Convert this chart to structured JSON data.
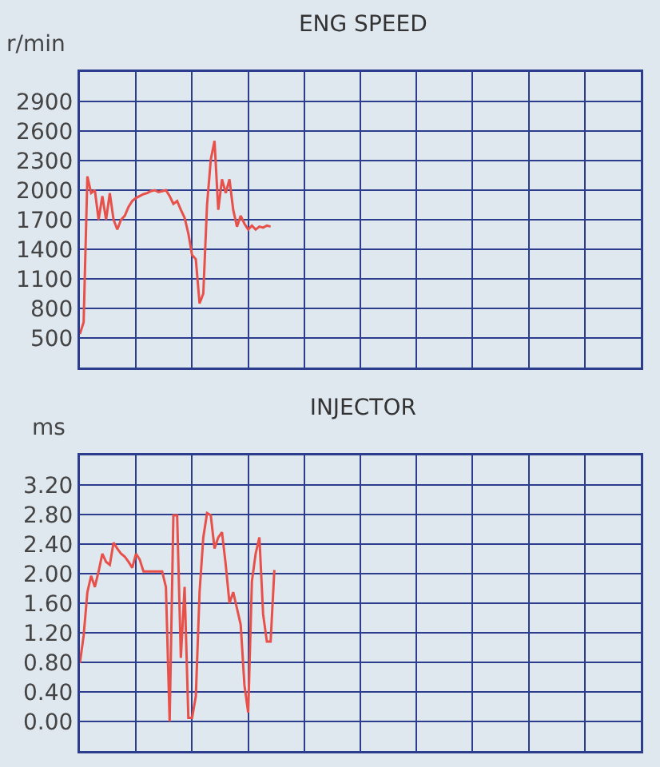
{
  "chart_data": [
    {
      "type": "line",
      "title": "ENG SPEED",
      "ylabel": "r/min",
      "grid": true,
      "marker": "none",
      "line_style": "solid",
      "tick_labels": "y",
      "ylim": [
        200,
        3200
      ],
      "yticks": [
        500,
        800,
        1100,
        1400,
        1700,
        2000,
        2300,
        2600,
        2900
      ],
      "categories": [
        null,
        null,
        null,
        null,
        null,
        null,
        null,
        null,
        null,
        null,
        null,
        null,
        null,
        null,
        null,
        null,
        null,
        null,
        null,
        null,
        null,
        null,
        null,
        null,
        null,
        null,
        null,
        null,
        null,
        null,
        null,
        null,
        null,
        null,
        null,
        null,
        null,
        null,
        null,
        null,
        null,
        null,
        null,
        null,
        null,
        null,
        null,
        null,
        null,
        null,
        null,
        null,
        null,
        null,
        null,
        null,
        null,
        null,
        null,
        null,
        null,
        null,
        null,
        null,
        null,
        null,
        null,
        null,
        null,
        null,
        null,
        null,
        null,
        null,
        null,
        null,
        null,
        null,
        null,
        null,
        null,
        null,
        null,
        null,
        null,
        null,
        null,
        null,
        null,
        null,
        null,
        null,
        null,
        null,
        null,
        null,
        null,
        null,
        null,
        null,
        null,
        null,
        null,
        null,
        null,
        null,
        null,
        null,
        null,
        null,
        null,
        null,
        null,
        null,
        null,
        null,
        null,
        null,
        null,
        null,
        null,
        null,
        null,
        null,
        null,
        null,
        null,
        null,
        null,
        null,
        null,
        null,
        null,
        null,
        null,
        null,
        null,
        null,
        null,
        null,
        null,
        null,
        null,
        null,
        null,
        null,
        null,
        null,
        null,
        null
      ],
      "series": [
        {
          "color": "#e8504a",
          "values": [
            540,
            660,
            2140,
            1970,
            2000,
            1700,
            1940,
            1700,
            1970,
            1700,
            1600,
            1700,
            1740,
            1830,
            1890,
            1920,
            1940,
            1960,
            1970,
            1990,
            2000,
            1980,
            1990,
            2000,
            1940,
            1860,
            1890,
            1800,
            1720,
            1560,
            1340,
            1300,
            850,
            950,
            1850,
            2310,
            2500,
            1800,
            2110,
            1970,
            2110,
            1800,
            1630,
            1740,
            1660,
            1600,
            1640,
            1600,
            1630,
            1620,
            1640,
            1630,
            null,
            null,
            null,
            null,
            null,
            null,
            null,
            null,
            null,
            null,
            null,
            null,
            null,
            null,
            null,
            null,
            null,
            null,
            null,
            null,
            null,
            null,
            null,
            null,
            null,
            null,
            null,
            null,
            null,
            null,
            null,
            null,
            null,
            null,
            null,
            null,
            null,
            null,
            null,
            null,
            null,
            null,
            null,
            null,
            null,
            null,
            null,
            null,
            null,
            null,
            null,
            null,
            null,
            null,
            null,
            null,
            null,
            null,
            null,
            null,
            null,
            null,
            null,
            null,
            null,
            null,
            null,
            null,
            null,
            null,
            null,
            null,
            null,
            null,
            null,
            null,
            null,
            null,
            null,
            null,
            null,
            null,
            null,
            null,
            null,
            null,
            null,
            null,
            null,
            null,
            null,
            null,
            null,
            null,
            null,
            null,
            null,
            null
          ]
        }
      ]
    },
    {
      "type": "line",
      "title": "INJECTOR",
      "ylabel": "ms",
      "grid": true,
      "marker": "none",
      "line_style": "solid",
      "tick_labels": "y",
      "ylim": [
        -0.4,
        3.6
      ],
      "yticks": [
        {
          "value": 0,
          "label": "0.00"
        },
        {
          "value": 0.4,
          "label": "0.40"
        },
        {
          "value": 0.8,
          "label": "0.80"
        },
        {
          "value": 1.2,
          "label": "1.20"
        },
        {
          "value": 1.6,
          "label": "1.60"
        },
        {
          "value": 2,
          "label": "2.00"
        },
        {
          "value": 2.4,
          "label": "2.40"
        },
        {
          "value": 2.8,
          "label": "2.80"
        },
        {
          "value": 3.2,
          "label": "3.20"
        }
      ],
      "categories": [
        null,
        null,
        null,
        null,
        null,
        null,
        null,
        null,
        null,
        null,
        null,
        null,
        null,
        null,
        null,
        null,
        null,
        null,
        null,
        null,
        null,
        null,
        null,
        null,
        null,
        null,
        null,
        null,
        null,
        null,
        null,
        null,
        null,
        null,
        null,
        null,
        null,
        null,
        null,
        null,
        null,
        null,
        null,
        null,
        null,
        null,
        null,
        null,
        null,
        null,
        null,
        null,
        null,
        null,
        null,
        null,
        null,
        null,
        null,
        null,
        null,
        null,
        null,
        null,
        null,
        null,
        null,
        null,
        null,
        null,
        null,
        null,
        null,
        null,
        null,
        null,
        null,
        null,
        null,
        null,
        null,
        null,
        null,
        null,
        null,
        null,
        null,
        null,
        null,
        null,
        null,
        null,
        null,
        null,
        null,
        null,
        null,
        null,
        null,
        null,
        null,
        null,
        null,
        null,
        null,
        null,
        null,
        null,
        null,
        null,
        null,
        null,
        null,
        null,
        null,
        null,
        null,
        null,
        null,
        null,
        null,
        null,
        null,
        null,
        null,
        null,
        null,
        null,
        null,
        null,
        null,
        null,
        null,
        null,
        null,
        null,
        null,
        null,
        null,
        null,
        null,
        null,
        null,
        null,
        null,
        null,
        null,
        null,
        null,
        null
      ],
      "series": [
        {
          "color": "#e8504a",
          "values": [
            0.79,
            1.16,
            1.75,
            1.97,
            1.82,
            2.03,
            2.27,
            2.16,
            2.12,
            2.42,
            2.34,
            2.27,
            2.23,
            2.16,
            2.08,
            2.27,
            2.19,
            2.03,
            2.03,
            2.03,
            2.03,
            2.03,
            2.03,
            1.82,
            0.0,
            2.79,
            2.79,
            0.86,
            1.82,
            0.05,
            0.05,
            0.34,
            1.75,
            2.49,
            2.82,
            2.79,
            2.34,
            2.49,
            2.56,
            2.12,
            1.6,
            1.75,
            1.53,
            1.31,
            0.49,
            0.12,
            1.9,
            2.27,
            2.49,
            1.45,
            1.08,
            1.08,
            2.05,
            null,
            null,
            null,
            null,
            null,
            null,
            null,
            null,
            null,
            null,
            null,
            null,
            null,
            null,
            null,
            null,
            null,
            null,
            null,
            null,
            null,
            null,
            null,
            null,
            null,
            null,
            null,
            null,
            null,
            null,
            null,
            null,
            null,
            null,
            null,
            null,
            null,
            null,
            null,
            null,
            null,
            null,
            null,
            null,
            null,
            null,
            null,
            null,
            null,
            null,
            null,
            null,
            null,
            null,
            null,
            null,
            null,
            null,
            null,
            null,
            null,
            null,
            null,
            null,
            null,
            null,
            null,
            null,
            null,
            null,
            null,
            null,
            null,
            null,
            null,
            null,
            null,
            null,
            null,
            null,
            null,
            null,
            null,
            null,
            null,
            null,
            null,
            null,
            null,
            null,
            null,
            null,
            null,
            null,
            null,
            null,
            null
          ]
        }
      ]
    }
  ]
}
